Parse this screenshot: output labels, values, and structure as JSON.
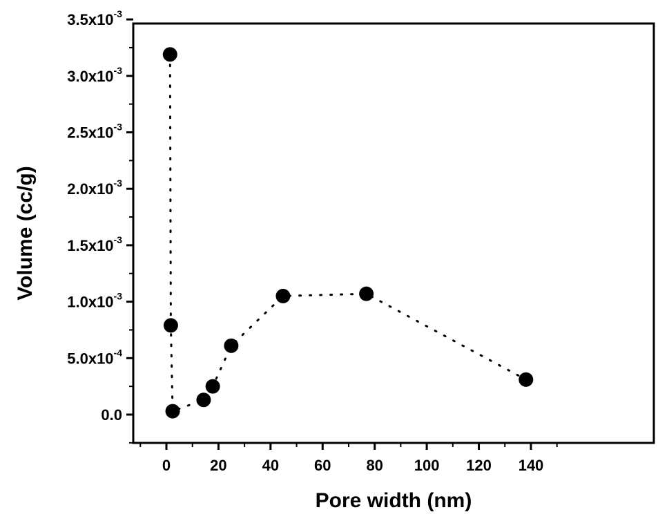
{
  "chart_data": {
    "type": "scatter",
    "xlabel": "Pore width (nm)",
    "ylabel": "Volume (cc/g)",
    "xlim": [
      -10,
      150
    ],
    "ylim": [
      -0.00025,
      0.0035
    ],
    "x_ticks": [
      0,
      20,
      40,
      60,
      80,
      100,
      120,
      140
    ],
    "x_tick_labels": [
      "0",
      "20",
      "40",
      "60",
      "80",
      "100",
      "120",
      "140"
    ],
    "y_ticks": [
      0,
      0.0005,
      0.001,
      0.0015,
      0.002,
      0.0025,
      0.003,
      0.0035
    ],
    "y_tick_labels": [
      {
        "base": "0.0",
        "exp": ""
      },
      {
        "base": "5.0x10",
        "exp": "-4"
      },
      {
        "base": "1.0x10",
        "exp": "-3"
      },
      {
        "base": "1.5x10",
        "exp": "-3"
      },
      {
        "base": "2.0x10",
        "exp": "-3"
      },
      {
        "base": "2.5x10",
        "exp": "-3"
      },
      {
        "base": "3.0x10",
        "exp": "-3"
      },
      {
        "base": "3.5x10",
        "exp": "-3"
      }
    ],
    "grid": false,
    "connector": "dotted",
    "marker_color": "#000000",
    "points": [
      {
        "x": 1.4,
        "y": 0.00319
      },
      {
        "x": 1.7,
        "y": 0.00079
      },
      {
        "x": 2.4,
        "y": 3e-05
      },
      {
        "x": 14.3,
        "y": 0.00013
      },
      {
        "x": 17.8,
        "y": 0.00025
      },
      {
        "x": 24.9,
        "y": 0.00061
      },
      {
        "x": 44.8,
        "y": 0.00105
      },
      {
        "x": 76.8,
        "y": 0.00107
      },
      {
        "x": 138.1,
        "y": 0.00031
      }
    ]
  }
}
